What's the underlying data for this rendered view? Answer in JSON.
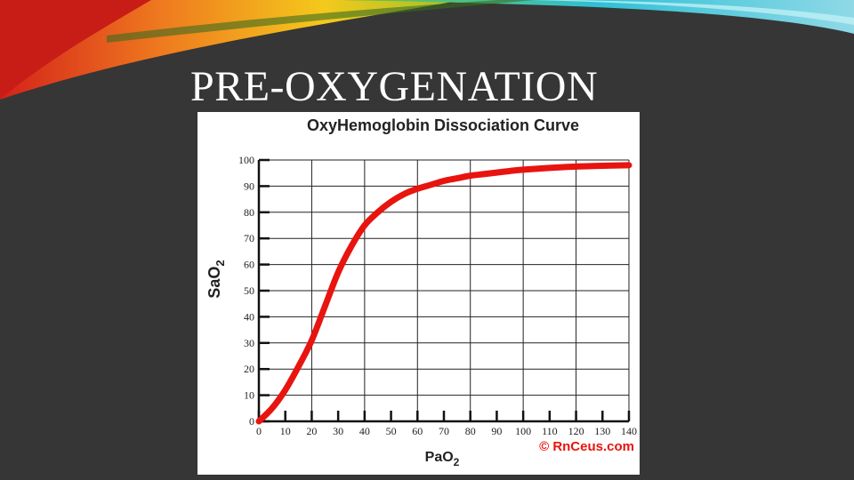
{
  "slide": {
    "title": "PRE-OXYGENATION"
  },
  "colors": {
    "background": "#363636",
    "curve": "#e8140f",
    "accent_teal": "#2fc0d6",
    "accent_red": "#e0231a",
    "accent_yellow": "#f2c21b"
  },
  "chart_data": {
    "type": "line",
    "title": "OxyHemoglobin Dissociation Curve",
    "xlabel_main": "PaO",
    "xlabel_sub": "2",
    "ylabel_main": "SaO",
    "ylabel_sub": "2",
    "xlim": [
      0,
      140
    ],
    "ylim": [
      0,
      100
    ],
    "x_ticks": [
      0,
      10,
      20,
      30,
      40,
      50,
      60,
      70,
      80,
      90,
      100,
      110,
      120,
      130,
      140
    ],
    "y_ticks": [
      0,
      10,
      20,
      30,
      40,
      50,
      60,
      70,
      80,
      90,
      100
    ],
    "grid": true,
    "copyright": "© RnCeus.com",
    "series": [
      {
        "x": [
          0,
          5,
          10,
          15,
          20,
          25,
          30,
          35,
          40,
          45,
          50,
          55,
          60,
          65,
          70,
          75,
          80,
          85,
          90,
          95,
          100,
          110,
          120,
          130,
          140
        ],
        "y": [
          0,
          5,
          12,
          21,
          31,
          44,
          57,
          67,
          75,
          80,
          84,
          87,
          89,
          90.5,
          92,
          93,
          94,
          94.6,
          95.2,
          95.8,
          96.3,
          97,
          97.5,
          97.8,
          98
        ]
      }
    ]
  }
}
